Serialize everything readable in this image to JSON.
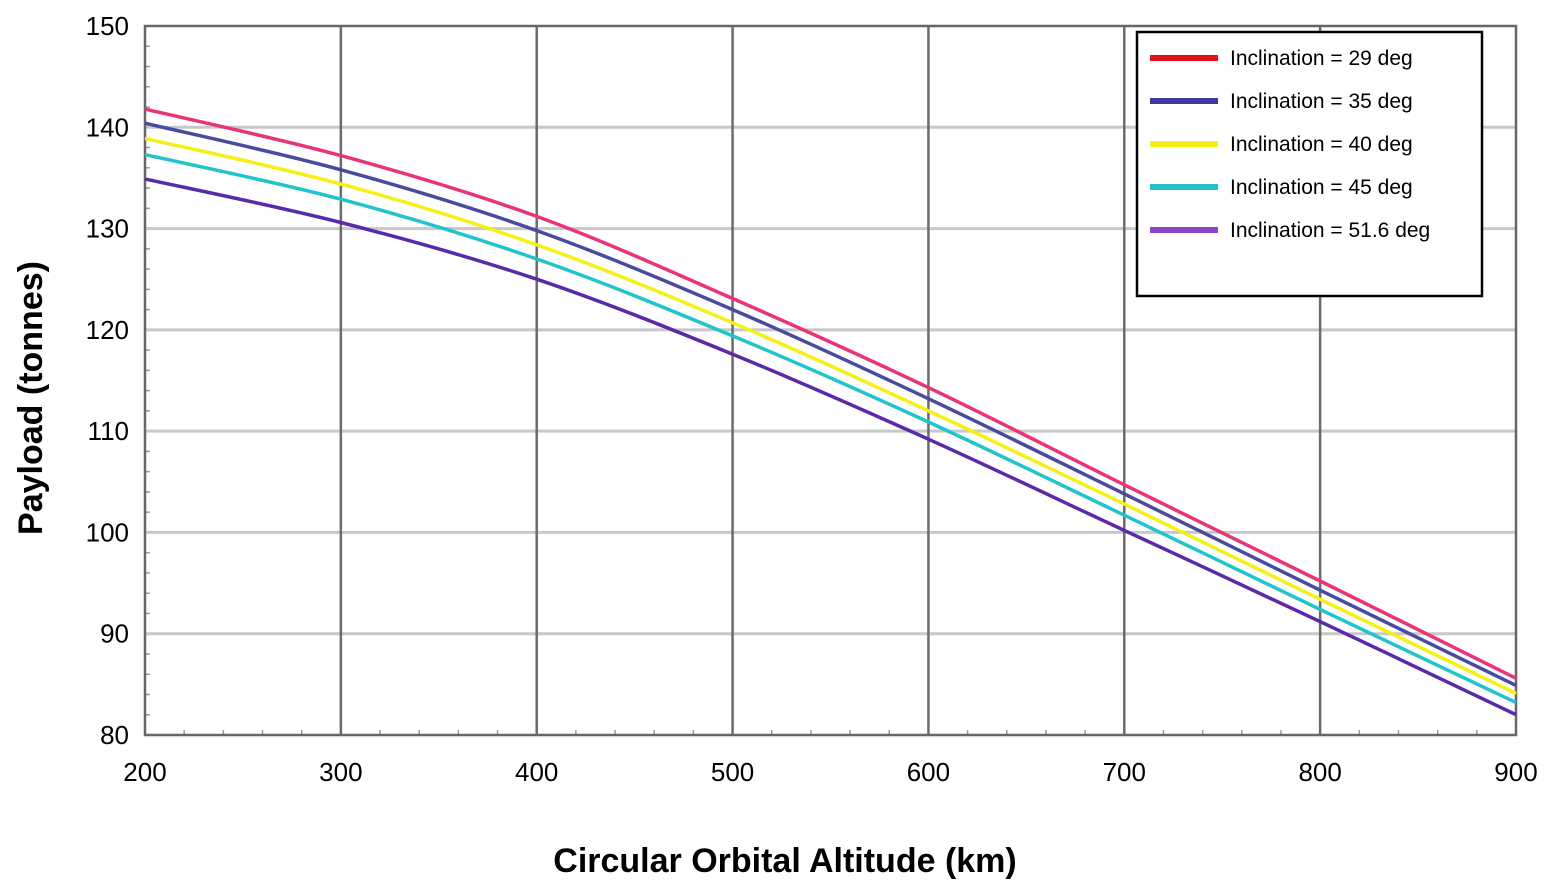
{
  "chart_data": {
    "type": "line",
    "title": "",
    "xlabel": "Circular Orbital Altitude (km)",
    "ylabel": "Payload (tonnes)",
    "xlim": [
      200,
      900
    ],
    "ylim": [
      80,
      150
    ],
    "x_ticks": [
      200,
      300,
      400,
      500,
      600,
      700,
      800,
      900
    ],
    "y_ticks": [
      80,
      90,
      100,
      110,
      120,
      130,
      140,
      150
    ],
    "grid": true,
    "legend_position": "top-right",
    "x": [
      200,
      300,
      400,
      500,
      600,
      700,
      800,
      900
    ],
    "series": [
      {
        "name": "Inclination = 29 deg",
        "legend_color": "#e0141e",
        "line_color": "#e8357a",
        "values": [
          141.8,
          137.2,
          131.2,
          123.1,
          114.3,
          104.7,
          95.2,
          85.6
        ]
      },
      {
        "name": "Inclination = 35 deg",
        "legend_color": "#3b3b9e",
        "line_color": "#4a4aa0",
        "values": [
          140.4,
          135.8,
          129.8,
          122.0,
          113.2,
          103.8,
          94.3,
          84.9
        ]
      },
      {
        "name": "Inclination = 40 deg",
        "legend_color": "#f5f018",
        "line_color": "#f5f018",
        "values": [
          138.9,
          134.4,
          128.4,
          120.7,
          112.0,
          102.8,
          93.4,
          84.1
        ]
      },
      {
        "name": "Inclination = 45 deg",
        "legend_color": "#22c4cc",
        "line_color": "#22c4cc",
        "values": [
          137.3,
          132.9,
          127.0,
          119.4,
          110.9,
          101.7,
          92.4,
          83.2
        ]
      },
      {
        "name": "Inclination = 51.6 deg",
        "legend_color": "#8a44c8",
        "line_color": "#5a2aa8",
        "values": [
          134.9,
          130.6,
          125.0,
          117.6,
          109.2,
          100.2,
          91.2,
          82.0
        ]
      }
    ]
  }
}
